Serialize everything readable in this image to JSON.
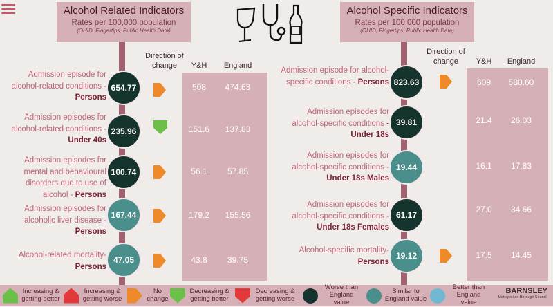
{
  "left_panel": {
    "title": "Alcohol Related Indicators",
    "subtitle": "Rates per 100,000 population",
    "source": "(OHID, Fingertips, Public Health Data)",
    "direction_header": "Direction of change",
    "yh_header": "Y&H",
    "england_header": "England",
    "rows": [
      {
        "label": "Admission episode for alcohol-related conditions -",
        "bold": "Persons",
        "value": "654.77",
        "yh": "508",
        "england": "474.63",
        "direction": "no-change",
        "comparison": "worse"
      },
      {
        "label": "Admission episodes for alcohol-related conditions -",
        "bold": "Under 40s",
        "value": "235.96",
        "yh": "151.6",
        "england": "137.83",
        "direction": "decreasing-better",
        "comparison": "worse"
      },
      {
        "label": "Admission episodes for mental and behavioural disorders due to use of alcohol -",
        "bold": "Persons",
        "value": "100.74",
        "yh": "56.1",
        "england": "57.85",
        "direction": "no-change",
        "comparison": "worse"
      },
      {
        "label": "Admission episodes for alcoholic liver disease -",
        "bold": "Persons",
        "value": "167.44",
        "yh": "179.2",
        "england": "155.56",
        "direction": "no-change",
        "comparison": "similar"
      },
      {
        "label": "Alcohol-related mortality-",
        "bold": "Persons",
        "value": "47.05",
        "yh": "43.8",
        "england": "39.75",
        "direction": "no-change",
        "comparison": "similar"
      }
    ]
  },
  "right_panel": {
    "title": "Alcohol Specific Indicators",
    "subtitle": "Rates per 100,000 population",
    "source": "(OHID, Fingertips, Public Health Data)",
    "direction_header": "Direction of change",
    "yh_header": "Y&H",
    "england_header": "England",
    "rows": [
      {
        "label": "Admission episode for alcohol-specific conditions -",
        "bold": "Persons",
        "value": "823.63",
        "yh": "609",
        "england": "580.60",
        "direction": "no-change",
        "comparison": "worse"
      },
      {
        "label": "Admission episodes for alcohol-specific conditions",
        "bold": "- Under 18s",
        "value": "39.81",
        "yh": "21.4",
        "england": "26.03",
        "direction": "",
        "comparison": "worse"
      },
      {
        "label": "Admission episodes for alcohol-specific conditions -",
        "bold": "Under 18s Males",
        "value": "19.44",
        "yh": "16.1",
        "england": "17.83",
        "direction": "",
        "comparison": "similar"
      },
      {
        "label": "Admission episodes for alcohol-specific conditions -",
        "bold": "Under 18s Females",
        "value": "61.17",
        "yh": "27.0",
        "england": "34.66",
        "direction": "",
        "comparison": "worse"
      },
      {
        "label": "Alcohol-specific mortality-",
        "bold": "Persons",
        "value": "19.12",
        "yh": "17.5",
        "england": "14.45",
        "direction": "no-change",
        "comparison": "similar"
      }
    ]
  },
  "legend": [
    {
      "text": "Increasing & getting better",
      "shape": "green-up"
    },
    {
      "text": "Increasing & getting worse",
      "shape": "red-up"
    },
    {
      "text": "No change",
      "shape": "orange-right"
    },
    {
      "text": "Decreasing & getting better",
      "shape": "green-down"
    },
    {
      "text": "Decreasing & getting worse",
      "shape": "red-down"
    },
    {
      "text": "Worse than England value",
      "shape": "dark-dot"
    },
    {
      "text": "Similar to England value",
      "shape": "teal-dot"
    },
    {
      "text": "Better than England value",
      "shape": "light-blue-dot"
    }
  ],
  "brand": {
    "name": "BARNSLEY",
    "sub": "Metropolitan Borough Council"
  },
  "colors": {
    "worse": "#16342e",
    "similar": "#4a8f8c",
    "better": "#6fb8cf",
    "no_change": "#ef8a2a",
    "good": "#6cc04a",
    "bad": "#e23a3a",
    "panel": "#d6b0b7",
    "pole": "#a26170"
  },
  "icons": [
    "menu-icon",
    "wine-glass-icon",
    "stethoscope-icon",
    "bottle-icon"
  ]
}
